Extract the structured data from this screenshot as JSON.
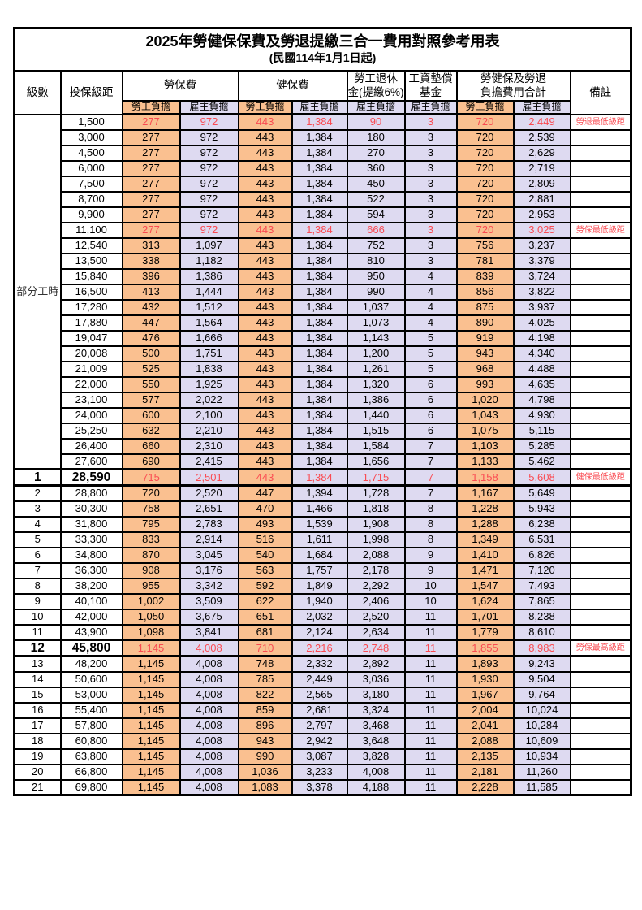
{
  "title": {
    "line1": "2025年勞健保保費及勞退提繳三合一費用對照參考用表",
    "line2": "(民國114年1月1日起)"
  },
  "colors": {
    "employee_bg": "#FAC090",
    "employer_bg": "#DEDAF1",
    "highlight_text": "#FA4B52",
    "border": "#000000"
  },
  "table": {
    "headers": {
      "level": "級數",
      "bracket": "投保級距",
      "labor_group": "勞保費",
      "health_group": "健保費",
      "pension_line1": "勞工退休",
      "pension_line2": "金(提繳6%)",
      "wage_fund_line1": "工資墊償",
      "wage_fund_line2": "基金",
      "total_line1": "勞健保及勞退",
      "total_line2": "負擔費用合計",
      "remark": "備註",
      "employee_share": "勞工負擔",
      "employer_share": "雇主負擔"
    },
    "part_time_label": "部分工時",
    "column_kinds": [
      "labor-employee",
      "labor-employer",
      "health-employee",
      "health-employer",
      "pension-employer",
      "wage-fund-employer",
      "total-employee",
      "total-employer"
    ],
    "rows": [
      {
        "lv": "",
        "br": "1,500",
        "v": [
          "277",
          "972",
          "443",
          "1,384",
          "90",
          "3",
          "720",
          "2,449"
        ],
        "rm": "勞退最低級距",
        "red": true,
        "big": false
      },
      {
        "lv": "",
        "br": "3,000",
        "v": [
          "277",
          "972",
          "443",
          "1,384",
          "180",
          "3",
          "720",
          "2,539"
        ],
        "rm": "",
        "red": false,
        "big": false
      },
      {
        "lv": "",
        "br": "4,500",
        "v": [
          "277",
          "972",
          "443",
          "1,384",
          "270",
          "3",
          "720",
          "2,629"
        ],
        "rm": "",
        "red": false,
        "big": false
      },
      {
        "lv": "",
        "br": "6,000",
        "v": [
          "277",
          "972",
          "443",
          "1,384",
          "360",
          "3",
          "720",
          "2,719"
        ],
        "rm": "",
        "red": false,
        "big": false
      },
      {
        "lv": "",
        "br": "7,500",
        "v": [
          "277",
          "972",
          "443",
          "1,384",
          "450",
          "3",
          "720",
          "2,809"
        ],
        "rm": "",
        "red": false,
        "big": false
      },
      {
        "lv": "",
        "br": "8,700",
        "v": [
          "277",
          "972",
          "443",
          "1,384",
          "522",
          "3",
          "720",
          "2,881"
        ],
        "rm": "",
        "red": false,
        "big": false
      },
      {
        "lv": "",
        "br": "9,900",
        "v": [
          "277",
          "972",
          "443",
          "1,384",
          "594",
          "3",
          "720",
          "2,953"
        ],
        "rm": "",
        "red": false,
        "big": false
      },
      {
        "lv": "",
        "br": "11,100",
        "v": [
          "277",
          "972",
          "443",
          "1,384",
          "666",
          "3",
          "720",
          "3,025"
        ],
        "rm": "勞保最低級距",
        "red": true,
        "big": false
      },
      {
        "lv": "",
        "br": "12,540",
        "v": [
          "313",
          "1,097",
          "443",
          "1,384",
          "752",
          "3",
          "756",
          "3,237"
        ],
        "rm": "",
        "red": false,
        "big": false
      },
      {
        "lv": "",
        "br": "13,500",
        "v": [
          "338",
          "1,182",
          "443",
          "1,384",
          "810",
          "3",
          "781",
          "3,379"
        ],
        "rm": "",
        "red": false,
        "big": false
      },
      {
        "lv": "",
        "br": "15,840",
        "v": [
          "396",
          "1,386",
          "443",
          "1,384",
          "950",
          "4",
          "839",
          "3,724"
        ],
        "rm": "",
        "red": false,
        "big": false
      },
      {
        "lv": "",
        "br": "16,500",
        "v": [
          "413",
          "1,444",
          "443",
          "1,384",
          "990",
          "4",
          "856",
          "3,822"
        ],
        "rm": "",
        "red": false,
        "big": false
      },
      {
        "lv": "",
        "br": "17,280",
        "v": [
          "432",
          "1,512",
          "443",
          "1,384",
          "1,037",
          "4",
          "875",
          "3,937"
        ],
        "rm": "",
        "red": false,
        "big": false
      },
      {
        "lv": "",
        "br": "17,880",
        "v": [
          "447",
          "1,564",
          "443",
          "1,384",
          "1,073",
          "4",
          "890",
          "4,025"
        ],
        "rm": "",
        "red": false,
        "big": false
      },
      {
        "lv": "",
        "br": "19,047",
        "v": [
          "476",
          "1,666",
          "443",
          "1,384",
          "1,143",
          "5",
          "919",
          "4,198"
        ],
        "rm": "",
        "red": false,
        "big": false
      },
      {
        "lv": "",
        "br": "20,008",
        "v": [
          "500",
          "1,751",
          "443",
          "1,384",
          "1,200",
          "5",
          "943",
          "4,340"
        ],
        "rm": "",
        "red": false,
        "big": false
      },
      {
        "lv": "",
        "br": "21,009",
        "v": [
          "525",
          "1,838",
          "443",
          "1,384",
          "1,261",
          "5",
          "968",
          "4,488"
        ],
        "rm": "",
        "red": false,
        "big": false
      },
      {
        "lv": "",
        "br": "22,000",
        "v": [
          "550",
          "1,925",
          "443",
          "1,384",
          "1,320",
          "6",
          "993",
          "4,635"
        ],
        "rm": "",
        "red": false,
        "big": false
      },
      {
        "lv": "",
        "br": "23,100",
        "v": [
          "577",
          "2,022",
          "443",
          "1,384",
          "1,386",
          "6",
          "1,020",
          "4,798"
        ],
        "rm": "",
        "red": false,
        "big": false
      },
      {
        "lv": "",
        "br": "24,000",
        "v": [
          "600",
          "2,100",
          "443",
          "1,384",
          "1,440",
          "6",
          "1,043",
          "4,930"
        ],
        "rm": "",
        "red": false,
        "big": false
      },
      {
        "lv": "",
        "br": "25,250",
        "v": [
          "632",
          "2,210",
          "443",
          "1,384",
          "1,515",
          "6",
          "1,075",
          "5,115"
        ],
        "rm": "",
        "red": false,
        "big": false
      },
      {
        "lv": "",
        "br": "26,400",
        "v": [
          "660",
          "2,310",
          "443",
          "1,384",
          "1,584",
          "7",
          "1,103",
          "5,285"
        ],
        "rm": "",
        "red": false,
        "big": false
      },
      {
        "lv": "",
        "br": "27,600",
        "v": [
          "690",
          "2,415",
          "443",
          "1,384",
          "1,656",
          "7",
          "1,133",
          "5,462"
        ],
        "rm": "",
        "red": false,
        "big": false
      },
      {
        "lv": "1",
        "br": "28,590",
        "v": [
          "715",
          "2,501",
          "443",
          "1,384",
          "1,715",
          "7",
          "1,158",
          "5,608"
        ],
        "rm": "健保最低級距",
        "red": true,
        "big": true
      },
      {
        "lv": "2",
        "br": "28,800",
        "v": [
          "720",
          "2,520",
          "447",
          "1,394",
          "1,728",
          "7",
          "1,167",
          "5,649"
        ],
        "rm": "",
        "red": false,
        "big": false
      },
      {
        "lv": "3",
        "br": "30,300",
        "v": [
          "758",
          "2,651",
          "470",
          "1,466",
          "1,818",
          "8",
          "1,228",
          "5,943"
        ],
        "rm": "",
        "red": false,
        "big": false
      },
      {
        "lv": "4",
        "br": "31,800",
        "v": [
          "795",
          "2,783",
          "493",
          "1,539",
          "1,908",
          "8",
          "1,288",
          "6,238"
        ],
        "rm": "",
        "red": false,
        "big": false
      },
      {
        "lv": "5",
        "br": "33,300",
        "v": [
          "833",
          "2,914",
          "516",
          "1,611",
          "1,998",
          "8",
          "1,349",
          "6,531"
        ],
        "rm": "",
        "red": false,
        "big": false
      },
      {
        "lv": "6",
        "br": "34,800",
        "v": [
          "870",
          "3,045",
          "540",
          "1,684",
          "2,088",
          "9",
          "1,410",
          "6,826"
        ],
        "rm": "",
        "red": false,
        "big": false
      },
      {
        "lv": "7",
        "br": "36,300",
        "v": [
          "908",
          "3,176",
          "563",
          "1,757",
          "2,178",
          "9",
          "1,471",
          "7,120"
        ],
        "rm": "",
        "red": false,
        "big": false
      },
      {
        "lv": "8",
        "br": "38,200",
        "v": [
          "955",
          "3,342",
          "592",
          "1,849",
          "2,292",
          "10",
          "1,547",
          "7,493"
        ],
        "rm": "",
        "red": false,
        "big": false
      },
      {
        "lv": "9",
        "br": "40,100",
        "v": [
          "1,002",
          "3,509",
          "622",
          "1,940",
          "2,406",
          "10",
          "1,624",
          "7,865"
        ],
        "rm": "",
        "red": false,
        "big": false
      },
      {
        "lv": "10",
        "br": "42,000",
        "v": [
          "1,050",
          "3,675",
          "651",
          "2,032",
          "2,520",
          "11",
          "1,701",
          "8,238"
        ],
        "rm": "",
        "red": false,
        "big": false
      },
      {
        "lv": "11",
        "br": "43,900",
        "v": [
          "1,098",
          "3,841",
          "681",
          "2,124",
          "2,634",
          "11",
          "1,779",
          "8,610"
        ],
        "rm": "",
        "red": false,
        "big": false
      },
      {
        "lv": "12",
        "br": "45,800",
        "v": [
          "1,145",
          "4,008",
          "710",
          "2,216",
          "2,748",
          "11",
          "1,855",
          "8,983"
        ],
        "rm": "勞保最高級距",
        "red": true,
        "big": true
      },
      {
        "lv": "13",
        "br": "48,200",
        "v": [
          "1,145",
          "4,008",
          "748",
          "2,332",
          "2,892",
          "11",
          "1,893",
          "9,243"
        ],
        "rm": "",
        "red": false,
        "big": false
      },
      {
        "lv": "14",
        "br": "50,600",
        "v": [
          "1,145",
          "4,008",
          "785",
          "2,449",
          "3,036",
          "11",
          "1,930",
          "9,504"
        ],
        "rm": "",
        "red": false,
        "big": false
      },
      {
        "lv": "15",
        "br": "53,000",
        "v": [
          "1,145",
          "4,008",
          "822",
          "2,565",
          "3,180",
          "11",
          "1,967",
          "9,764"
        ],
        "rm": "",
        "red": false,
        "big": false
      },
      {
        "lv": "16",
        "br": "55,400",
        "v": [
          "1,145",
          "4,008",
          "859",
          "2,681",
          "3,324",
          "11",
          "2,004",
          "10,024"
        ],
        "rm": "",
        "red": false,
        "big": false
      },
      {
        "lv": "17",
        "br": "57,800",
        "v": [
          "1,145",
          "4,008",
          "896",
          "2,797",
          "3,468",
          "11",
          "2,041",
          "10,284"
        ],
        "rm": "",
        "red": false,
        "big": false
      },
      {
        "lv": "18",
        "br": "60,800",
        "v": [
          "1,145",
          "4,008",
          "943",
          "2,942",
          "3,648",
          "11",
          "2,088",
          "10,609"
        ],
        "rm": "",
        "red": false,
        "big": false
      },
      {
        "lv": "19",
        "br": "63,800",
        "v": [
          "1,145",
          "4,008",
          "990",
          "3,087",
          "3,828",
          "11",
          "2,135",
          "10,934"
        ],
        "rm": "",
        "red": false,
        "big": false
      },
      {
        "lv": "20",
        "br": "66,800",
        "v": [
          "1,145",
          "4,008",
          "1,036",
          "3,233",
          "4,008",
          "11",
          "2,181",
          "11,260"
        ],
        "rm": "",
        "red": false,
        "big": false
      },
      {
        "lv": "21",
        "br": "69,800",
        "v": [
          "1,145",
          "4,008",
          "1,083",
          "3,378",
          "4,188",
          "11",
          "2,228",
          "11,585"
        ],
        "rm": "",
        "red": false,
        "big": false
      }
    ]
  }
}
